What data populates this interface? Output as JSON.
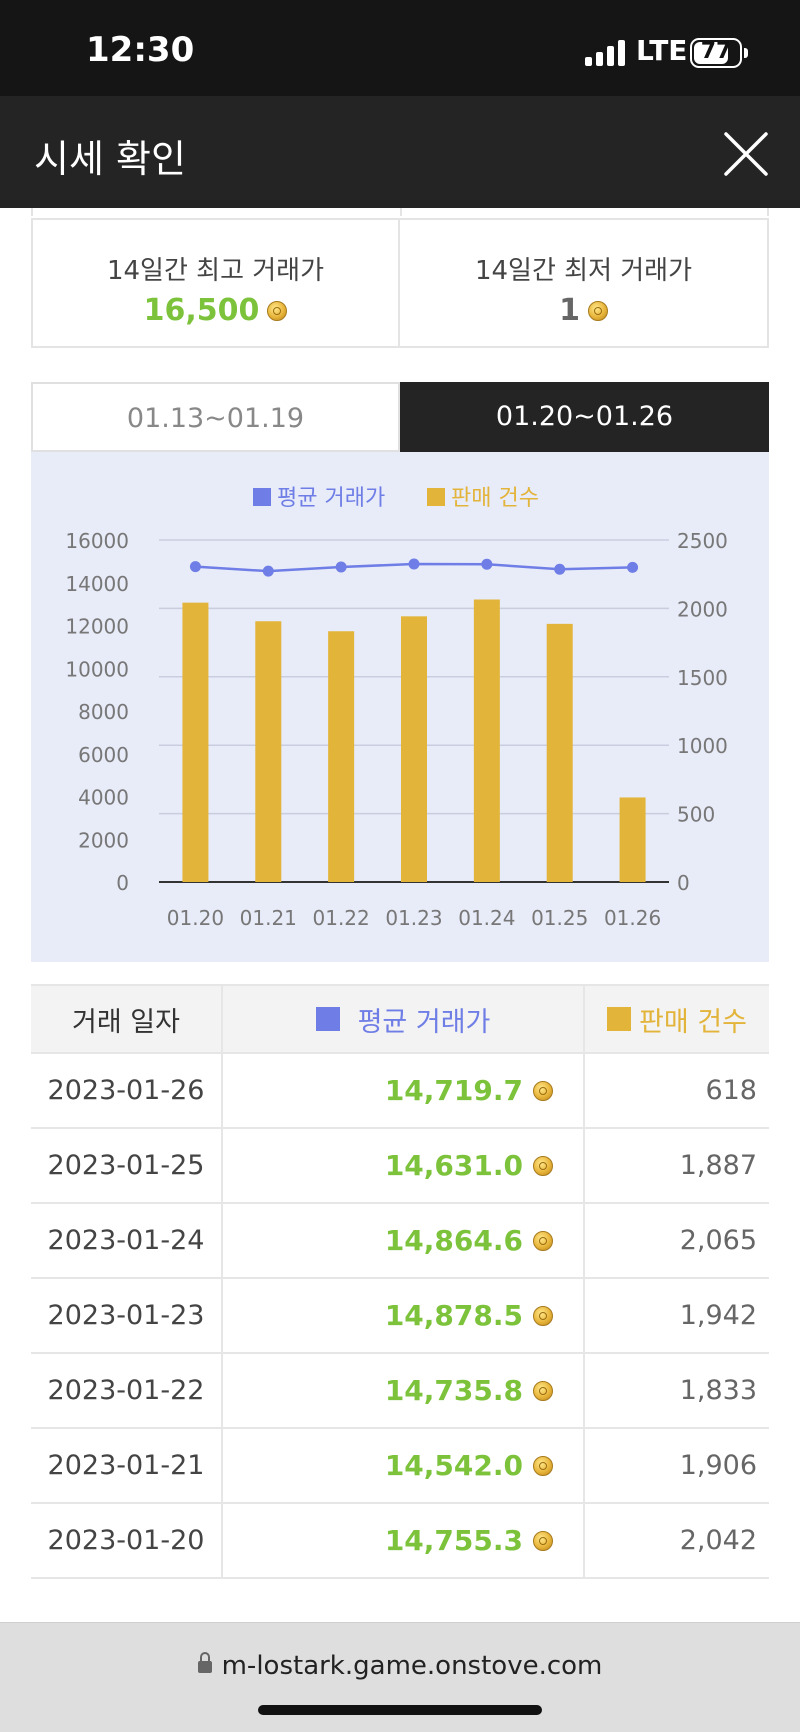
{
  "status_bar": {
    "time": "12:30",
    "network": "LTE",
    "battery": "77",
    "battery_level": 0.77
  },
  "header": {
    "title": "시세 확인",
    "close_icon": "close-icon"
  },
  "stats": {
    "high_label": "14일간 최고 거래가",
    "high_value": "16,500",
    "low_label": "14일간 최저 거래가",
    "low_value": "1"
  },
  "tabs": [
    {
      "label": "01.13~01.19",
      "active": false
    },
    {
      "label": "01.20~01.26",
      "active": true
    }
  ],
  "colors": {
    "avg_price": "#6f7ee6",
    "sales": "#e3b43a",
    "price_text": "#7cc33b",
    "chart_bg": "#e8ebf8"
  },
  "chart_data": {
    "type": "bar+line",
    "legend": [
      "평균 거래가",
      "판매 건수"
    ],
    "categories": [
      "01.20",
      "01.21",
      "01.22",
      "01.23",
      "01.24",
      "01.25",
      "01.26"
    ],
    "series": [
      {
        "name": "평균 거래가",
        "type": "line",
        "axis": "left",
        "values": [
          14755.3,
          14542.0,
          14735.8,
          14878.5,
          14864.6,
          14631.0,
          14719.7
        ]
      },
      {
        "name": "판매 건수",
        "type": "bar",
        "axis": "right",
        "values": [
          2042,
          1906,
          1833,
          1942,
          2065,
          1887,
          618
        ]
      }
    ],
    "left_ticks": [
      "16000",
      "14000",
      "12000",
      "10000",
      "8000",
      "6000",
      "4000",
      "2000",
      "0"
    ],
    "left_range": [
      0,
      16000
    ],
    "right_ticks": [
      "2500",
      "2000",
      "1500",
      "1000",
      "500",
      "0"
    ],
    "right_range": [
      0,
      2500
    ],
    "gridlines": true,
    "legend_position": "top-center"
  },
  "table": {
    "headers": {
      "date": "거래 일자",
      "avg": "평균 거래가",
      "sales": "판매 건수"
    },
    "rows": [
      {
        "date": "2023-01-26",
        "avg": "14,719.7",
        "sales": "618"
      },
      {
        "date": "2023-01-25",
        "avg": "14,631.0",
        "sales": "1,887"
      },
      {
        "date": "2023-01-24",
        "avg": "14,864.6",
        "sales": "2,065"
      },
      {
        "date": "2023-01-23",
        "avg": "14,878.5",
        "sales": "1,942"
      },
      {
        "date": "2023-01-22",
        "avg": "14,735.8",
        "sales": "1,833"
      },
      {
        "date": "2023-01-21",
        "avg": "14,542.0",
        "sales": "1,906"
      },
      {
        "date": "2023-01-20",
        "avg": "14,755.3",
        "sales": "2,042"
      }
    ]
  },
  "url_bar": {
    "url": "m-lostark.game.onstove.com"
  }
}
